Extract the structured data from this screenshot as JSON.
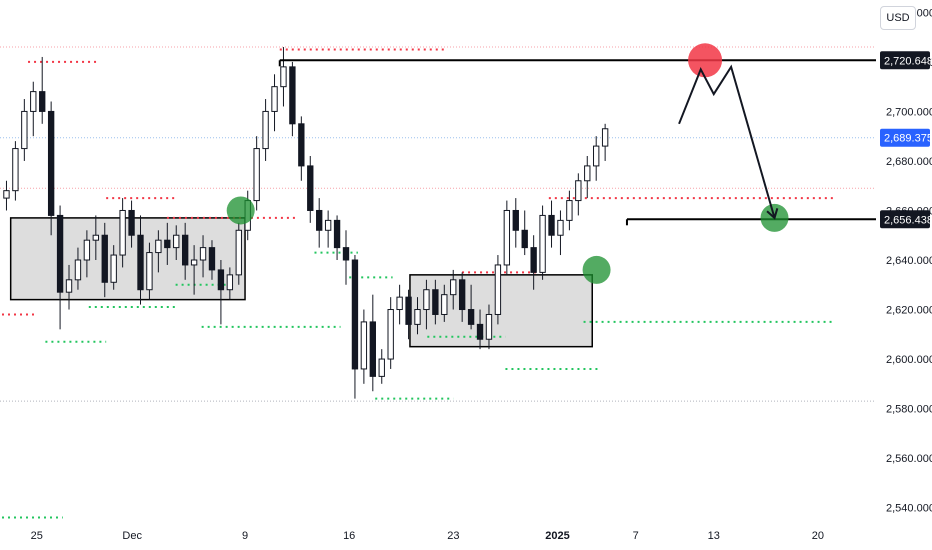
{
  "chart_data": {
    "type": "candlestick",
    "currency": "USD",
    "y_ticks": [
      2540,
      2560,
      2580,
      2600,
      2620,
      2640,
      2660,
      2680,
      2700,
      2720,
      2740
    ],
    "x_ticks": [
      "25",
      "Dec",
      "9",
      "16",
      "23",
      "2025",
      "7",
      "13",
      "20"
    ],
    "ylim": [
      2535,
      2745
    ],
    "price_labels": [
      {
        "value": 2720.648,
        "text": "2,720.648",
        "style": "dark"
      },
      {
        "value": 2689.375,
        "text": "2,689.375",
        "style": "blue"
      },
      {
        "value": 2656.438,
        "text": "2,656.438",
        "style": "dark"
      }
    ],
    "consolidation_zones": [
      {
        "x_start": 1,
        "x_end": 28,
        "low": 2624,
        "high": 2657
      },
      {
        "x_start": 47,
        "x_end": 68,
        "low": 2605,
        "high": 2634
      }
    ],
    "horizontal_levels": [
      {
        "price": 2720.648,
        "x_start": 32,
        "x_end": 100,
        "color": "#000000"
      },
      {
        "price": 2656.438,
        "x_start": 72,
        "x_end": 100,
        "color": "#000000"
      }
    ],
    "support_resistance_dots": [
      {
        "price": 2720,
        "x_start": 3,
        "x_end": 11,
        "color": "#f23645"
      },
      {
        "price": 2618,
        "x_start": 0,
        "x_end": 4,
        "color": "#f23645"
      },
      {
        "price": 2607,
        "x_start": 5,
        "x_end": 12,
        "color": "#22c55e"
      },
      {
        "price": 2665,
        "x_start": 12,
        "x_end": 20,
        "color": "#f23645"
      },
      {
        "price": 2621,
        "x_start": 10,
        "x_end": 20,
        "color": "#22c55e"
      },
      {
        "price": 2657,
        "x_start": 19,
        "x_end": 34,
        "color": "#f23645"
      },
      {
        "price": 2630,
        "x_start": 20,
        "x_end": 26,
        "color": "#22c55e"
      },
      {
        "price": 2613,
        "x_start": 23,
        "x_end": 39,
        "color": "#22c55e"
      },
      {
        "price": 2725,
        "x_start": 32,
        "x_end": 51,
        "color": "#f23645"
      },
      {
        "price": 2643,
        "x_start": 36,
        "x_end": 41,
        "color": "#22c55e"
      },
      {
        "price": 2633,
        "x_start": 40,
        "x_end": 45,
        "color": "#22c55e"
      },
      {
        "price": 2584,
        "x_start": 43,
        "x_end": 52,
        "color": "#22c55e"
      },
      {
        "price": 2635,
        "x_start": 53,
        "x_end": 62,
        "color": "#f23645"
      },
      {
        "price": 2609,
        "x_start": 49,
        "x_end": 58,
        "color": "#22c55e"
      },
      {
        "price": 2596,
        "x_start": 58,
        "x_end": 69,
        "color": "#22c55e"
      },
      {
        "price": 2665,
        "x_start": 63,
        "x_end": 96,
        "color": "#f23645"
      },
      {
        "price": 2615,
        "x_start": 67,
        "x_end": 96,
        "color": "#22c55e"
      },
      {
        "price": 2536,
        "x_start": 0,
        "x_end": 7,
        "color": "#22c55e"
      }
    ],
    "dotted_price_lines": [
      {
        "price": 2726,
        "color": "#f7a1a8"
      },
      {
        "price": 2689.375,
        "color": "#9cc0ee"
      },
      {
        "price": 2669,
        "color": "#f7a1a8"
      },
      {
        "price": 2583,
        "color": "#b0b4bc"
      }
    ],
    "highlight_circles": [
      {
        "x": 27.5,
        "price": 2660,
        "color": "#1a8f2e"
      },
      {
        "x": 68.5,
        "price": 2636,
        "color": "#1a8f2e"
      },
      {
        "x": 81,
        "price": 2720.648,
        "color": "#f23645"
      },
      {
        "x": 89,
        "price": 2657,
        "color": "#1a8f2e"
      }
    ],
    "projection_path": [
      {
        "x": 78,
        "price": 2695
      },
      {
        "x": 80.5,
        "price": 2717
      },
      {
        "x": 82,
        "price": 2707
      },
      {
        "x": 84,
        "price": 2718
      },
      {
        "x": 89,
        "price": 2657
      }
    ],
    "candles": [
      {
        "o": 2665,
        "h": 2672,
        "l": 2660,
        "c": 2668
      },
      {
        "o": 2668,
        "h": 2688,
        "l": 2664,
        "c": 2685
      },
      {
        "o": 2685,
        "h": 2705,
        "l": 2680,
        "c": 2700
      },
      {
        "o": 2700,
        "h": 2712,
        "l": 2690,
        "c": 2708
      },
      {
        "o": 2708,
        "h": 2722,
        "l": 2695,
        "c": 2700
      },
      {
        "o": 2700,
        "h": 2704,
        "l": 2650,
        "c": 2658
      },
      {
        "o": 2658,
        "h": 2662,
        "l": 2612,
        "c": 2627
      },
      {
        "o": 2627,
        "h": 2638,
        "l": 2620,
        "c": 2632
      },
      {
        "o": 2632,
        "h": 2645,
        "l": 2628,
        "c": 2640
      },
      {
        "o": 2640,
        "h": 2652,
        "l": 2633,
        "c": 2648
      },
      {
        "o": 2648,
        "h": 2658,
        "l": 2640,
        "c": 2650
      },
      {
        "o": 2650,
        "h": 2655,
        "l": 2625,
        "c": 2631
      },
      {
        "o": 2631,
        "h": 2646,
        "l": 2628,
        "c": 2642
      },
      {
        "o": 2642,
        "h": 2665,
        "l": 2637,
        "c": 2660
      },
      {
        "o": 2660,
        "h": 2664,
        "l": 2645,
        "c": 2650
      },
      {
        "o": 2650,
        "h": 2658,
        "l": 2622,
        "c": 2628
      },
      {
        "o": 2628,
        "h": 2647,
        "l": 2624,
        "c": 2643
      },
      {
        "o": 2643,
        "h": 2652,
        "l": 2635,
        "c": 2648
      },
      {
        "o": 2648,
        "h": 2655,
        "l": 2638,
        "c": 2645
      },
      {
        "o": 2645,
        "h": 2654,
        "l": 2640,
        "c": 2650
      },
      {
        "o": 2650,
        "h": 2655,
        "l": 2632,
        "c": 2638
      },
      {
        "o": 2638,
        "h": 2646,
        "l": 2626,
        "c": 2640
      },
      {
        "o": 2640,
        "h": 2650,
        "l": 2633,
        "c": 2645
      },
      {
        "o": 2645,
        "h": 2648,
        "l": 2632,
        "c": 2636
      },
      {
        "o": 2636,
        "h": 2640,
        "l": 2614,
        "c": 2628
      },
      {
        "o": 2628,
        "h": 2637,
        "l": 2624,
        "c": 2634
      },
      {
        "o": 2634,
        "h": 2655,
        "l": 2630,
        "c": 2652
      },
      {
        "o": 2652,
        "h": 2668,
        "l": 2648,
        "c": 2664
      },
      {
        "o": 2664,
        "h": 2690,
        "l": 2660,
        "c": 2685
      },
      {
        "o": 2685,
        "h": 2705,
        "l": 2680,
        "c": 2700
      },
      {
        "o": 2700,
        "h": 2715,
        "l": 2692,
        "c": 2710
      },
      {
        "o": 2710,
        "h": 2726,
        "l": 2702,
        "c": 2718
      },
      {
        "o": 2718,
        "h": 2720,
        "l": 2690,
        "c": 2695
      },
      {
        "o": 2695,
        "h": 2698,
        "l": 2672,
        "c": 2678
      },
      {
        "o": 2678,
        "h": 2682,
        "l": 2655,
        "c": 2660
      },
      {
        "o": 2660,
        "h": 2665,
        "l": 2645,
        "c": 2652
      },
      {
        "o": 2652,
        "h": 2660,
        "l": 2645,
        "c": 2656
      },
      {
        "o": 2656,
        "h": 2658,
        "l": 2640,
        "c": 2645
      },
      {
        "o": 2645,
        "h": 2652,
        "l": 2630,
        "c": 2640
      },
      {
        "o": 2640,
        "h": 2642,
        "l": 2584,
        "c": 2596
      },
      {
        "o": 2596,
        "h": 2620,
        "l": 2590,
        "c": 2615
      },
      {
        "o": 2615,
        "h": 2626,
        "l": 2587,
        "c": 2593
      },
      {
        "o": 2593,
        "h": 2604,
        "l": 2590,
        "c": 2600
      },
      {
        "o": 2600,
        "h": 2625,
        "l": 2596,
        "c": 2620
      },
      {
        "o": 2620,
        "h": 2630,
        "l": 2614,
        "c": 2625
      },
      {
        "o": 2625,
        "h": 2628,
        "l": 2608,
        "c": 2614
      },
      {
        "o": 2614,
        "h": 2625,
        "l": 2610,
        "c": 2620
      },
      {
        "o": 2620,
        "h": 2632,
        "l": 2612,
        "c": 2628
      },
      {
        "o": 2628,
        "h": 2632,
        "l": 2614,
        "c": 2618
      },
      {
        "o": 2618,
        "h": 2630,
        "l": 2615,
        "c": 2626
      },
      {
        "o": 2626,
        "h": 2636,
        "l": 2620,
        "c": 2632
      },
      {
        "o": 2632,
        "h": 2635,
        "l": 2615,
        "c": 2620
      },
      {
        "o": 2620,
        "h": 2630,
        "l": 2612,
        "c": 2614
      },
      {
        "o": 2614,
        "h": 2620,
        "l": 2604,
        "c": 2608
      },
      {
        "o": 2608,
        "h": 2622,
        "l": 2604,
        "c": 2618
      },
      {
        "o": 2618,
        "h": 2642,
        "l": 2614,
        "c": 2638
      },
      {
        "o": 2638,
        "h": 2664,
        "l": 2634,
        "c": 2660
      },
      {
        "o": 2660,
        "h": 2665,
        "l": 2645,
        "c": 2652
      },
      {
        "o": 2652,
        "h": 2660,
        "l": 2642,
        "c": 2645
      },
      {
        "o": 2645,
        "h": 2650,
        "l": 2628,
        "c": 2635
      },
      {
        "o": 2635,
        "h": 2662,
        "l": 2632,
        "c": 2658
      },
      {
        "o": 2658,
        "h": 2664,
        "l": 2645,
        "c": 2650
      },
      {
        "o": 2650,
        "h": 2660,
        "l": 2642,
        "c": 2656
      },
      {
        "o": 2656,
        "h": 2668,
        "l": 2652,
        "c": 2664
      },
      {
        "o": 2664,
        "h": 2675,
        "l": 2658,
        "c": 2672
      },
      {
        "o": 2672,
        "h": 2682,
        "l": 2665,
        "c": 2678
      },
      {
        "o": 2678,
        "h": 2690,
        "l": 2672,
        "c": 2686
      },
      {
        "o": 2686,
        "h": 2695,
        "l": 2680,
        "c": 2693
      }
    ]
  }
}
